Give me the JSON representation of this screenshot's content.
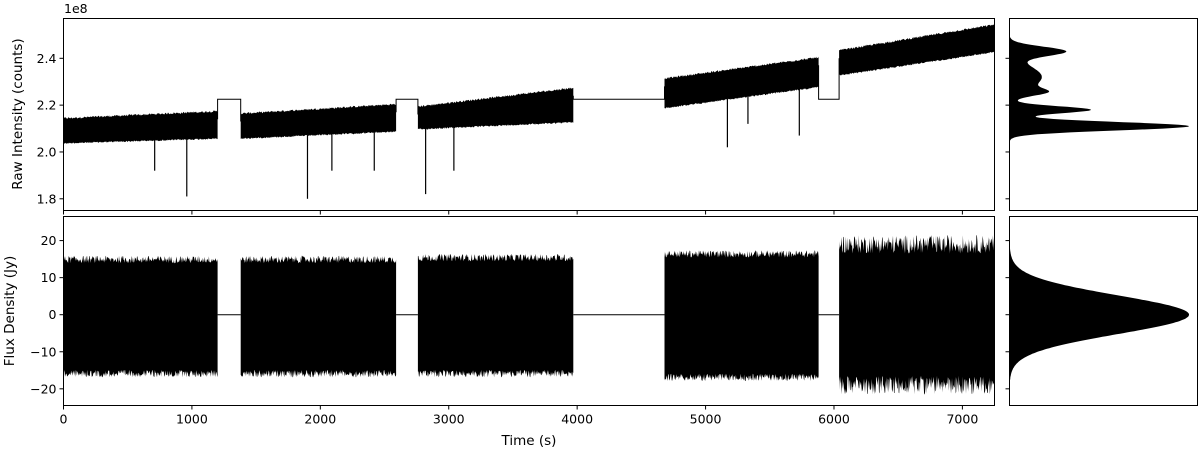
{
  "chart_data": [
    {
      "panel": "top-timeseries",
      "type": "line",
      "title": "",
      "xlabel": "",
      "ylabel": "Raw Intensity (counts)",
      "offset_text": "1e8",
      "xlim": [
        0,
        7250
      ],
      "ylim": [
        1.75,
        2.57
      ],
      "yticks": [
        1.8,
        2.0,
        2.2,
        2.4
      ],
      "ytick_labels": [
        "1.8",
        "2.0",
        "2.2",
        "2.4"
      ],
      "xticks": [
        0,
        1000,
        2000,
        3000,
        4000,
        5000,
        6000,
        7000
      ],
      "segments": [
        {
          "x": [
            0,
            1200
          ],
          "y_low": [
            2.04,
            2.06
          ],
          "y_high": [
            2.14,
            2.17
          ]
        },
        {
          "x": [
            1380,
            2590
          ],
          "y_low": [
            2.06,
            2.09
          ],
          "y_high": [
            2.16,
            2.2
          ]
        },
        {
          "x": [
            2760,
            3970
          ],
          "y_low": [
            2.1,
            2.13
          ],
          "y_high": [
            2.19,
            2.27
          ]
        },
        {
          "x": [
            4680,
            5880
          ],
          "y_low": [
            2.19,
            2.28
          ],
          "y_high": [
            2.31,
            2.4
          ]
        },
        {
          "x": [
            6040,
            7250
          ],
          "y_low": [
            2.33,
            2.43
          ],
          "y_high": [
            2.43,
            2.54
          ]
        }
      ],
      "gap_fill": [
        {
          "x": [
            1200,
            1380
          ],
          "y": 2.225
        },
        {
          "x": [
            2590,
            2760
          ],
          "y": 2.225
        },
        {
          "x": [
            3970,
            4680
          ],
          "y": 2.225
        },
        {
          "x": [
            5880,
            6040
          ],
          "y": 2.225
        }
      ],
      "spikes": [
        {
          "x": 710,
          "y": 1.92
        },
        {
          "x": 960,
          "y": 1.81
        },
        {
          "x": 1900,
          "y": 1.8
        },
        {
          "x": 2090,
          "y": 1.92
        },
        {
          "x": 2420,
          "y": 1.92
        },
        {
          "x": 2820,
          "y": 1.82
        },
        {
          "x": 3040,
          "y": 1.92
        },
        {
          "x": 5170,
          "y": 2.02
        },
        {
          "x": 5330,
          "y": 2.12
        },
        {
          "x": 5730,
          "y": 2.07
        }
      ]
    },
    {
      "panel": "top-histogram",
      "type": "area",
      "title": "",
      "ylim": [
        1.75,
        2.57
      ],
      "peaks": [
        {
          "center": 2.11,
          "sigma": 0.018,
          "height": 1.0
        },
        {
          "center": 2.18,
          "sigma": 0.015,
          "height": 0.45
        },
        {
          "center": 2.255,
          "sigma": 0.015,
          "height": 0.14
        },
        {
          "center": 2.32,
          "sigma": 0.05,
          "height": 0.18
        },
        {
          "center": 2.43,
          "sigma": 0.02,
          "height": 0.3
        }
      ]
    },
    {
      "panel": "bottom-timeseries",
      "type": "line",
      "title": "",
      "xlabel": "Time (s)",
      "ylabel": "Flux Density (Jy)",
      "xlim": [
        0,
        7250
      ],
      "ylim": [
        -24.5,
        26.5
      ],
      "yticks": [
        -20,
        -10,
        0,
        10,
        20
      ],
      "ytick_labels": [
        "−20",
        "−10",
        "0",
        "10",
        "20"
      ],
      "xticks": [
        0,
        1000,
        2000,
        3000,
        4000,
        5000,
        6000,
        7000
      ],
      "xtick_labels": [
        "0",
        "1000",
        "2000",
        "3000",
        "4000",
        "5000",
        "6000",
        "7000"
      ],
      "segments": [
        {
          "x": [
            0,
            1200
          ],
          "y_low": -15.5,
          "y_high": 14.5,
          "jitter": 1.0
        },
        {
          "x": [
            1380,
            2590
          ],
          "y_low": -15.5,
          "y_high": 14.5,
          "jitter": 1.0
        },
        {
          "x": [
            2760,
            3970
          ],
          "y_low": -15.5,
          "y_high": 15.0,
          "jitter": 1.0
        },
        {
          "x": [
            4680,
            5880
          ],
          "y_low": -16.5,
          "y_high": 16.0,
          "jitter": 1.0
        },
        {
          "x": [
            6040,
            7250
          ],
          "y_low": -18.0,
          "y_high": 18.0,
          "jitter": 2.5
        }
      ],
      "gap_fill": [
        {
          "x": [
            1200,
            1380
          ],
          "y": 0
        },
        {
          "x": [
            2590,
            2760
          ],
          "y": 0
        },
        {
          "x": [
            3970,
            4680
          ],
          "y": 0
        },
        {
          "x": [
            5880,
            6040
          ],
          "y": 0
        }
      ]
    },
    {
      "panel": "bottom-histogram",
      "type": "area",
      "title": "",
      "ylim": [
        -24.5,
        26.5
      ],
      "peaks": [
        {
          "center": 0,
          "sigma": 5.2,
          "height": 1.0
        }
      ]
    }
  ]
}
